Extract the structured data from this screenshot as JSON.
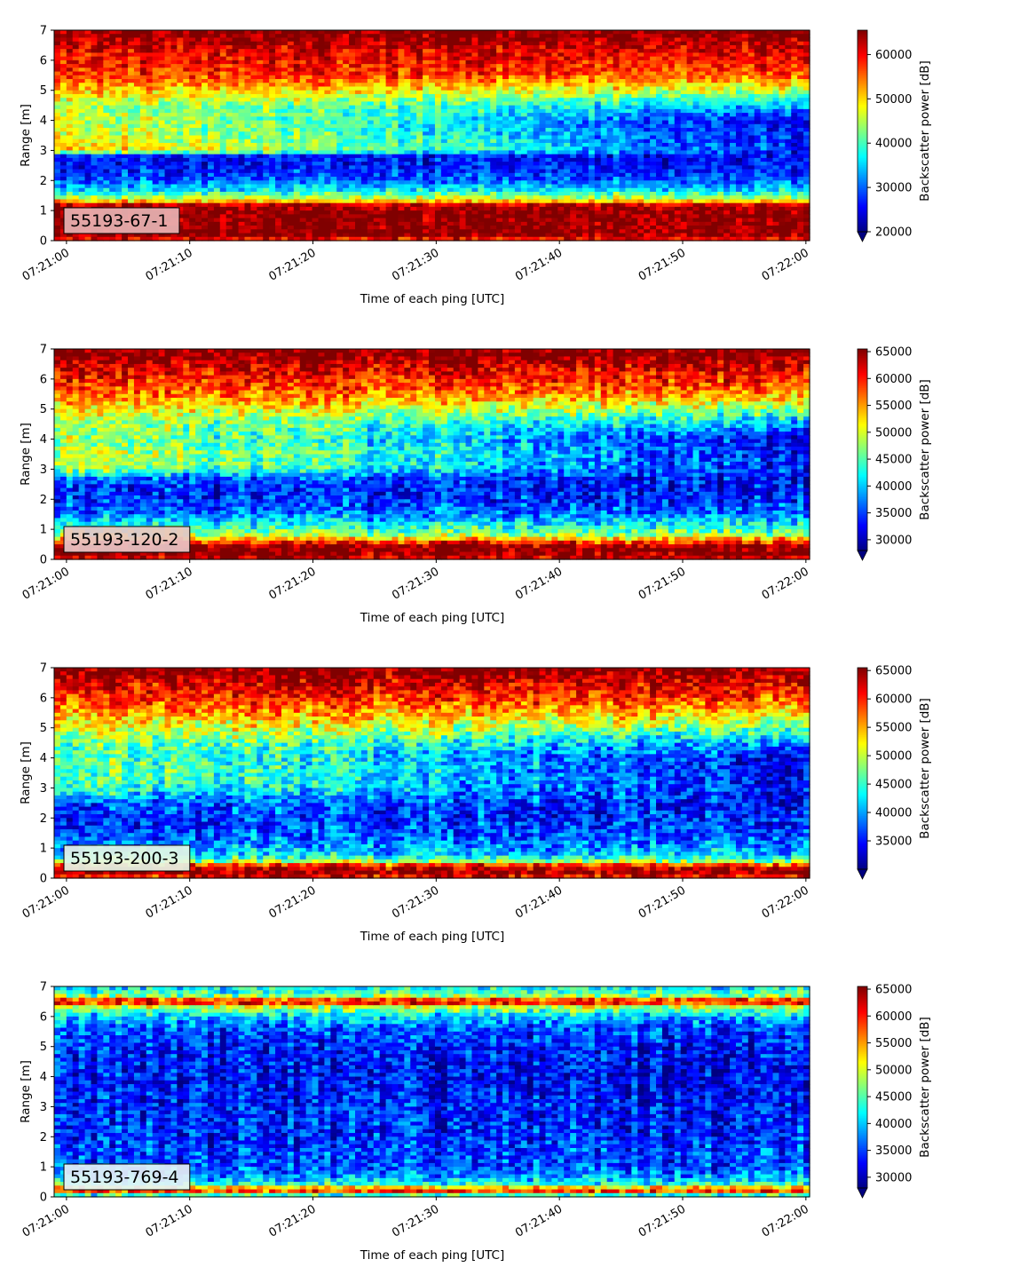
{
  "chart_data": [
    {
      "type": "heatmap",
      "panel_label": "55193-67-1",
      "panel_label_box_color": "#e8b3b3",
      "xlabel": "Time of each ping [UTC]",
      "ylabel": "Range [m]",
      "xticks": [
        "07:21:00",
        "07:21:10",
        "07:21:20",
        "07:21:30",
        "07:21:40",
        "07:21:50",
        "07:22:00"
      ],
      "xlim_seconds_after_07_21_00": [
        -1,
        60.3
      ],
      "yticks": [
        0,
        1,
        2,
        3,
        4,
        5,
        6,
        7
      ],
      "ylim": [
        0,
        7
      ],
      "colormap": "jet",
      "colorbar_label": "Backscatter power [dB]",
      "colorbar_ticks": [
        20000,
        30000,
        40000,
        50000,
        60000
      ],
      "clim": [
        20000,
        65500
      ],
      "colorbar_extend": "min",
      "profile_at_range": {
        "range_m": [
          0.0,
          0.2,
          0.3,
          0.5,
          1.0,
          1.2,
          1.3,
          1.5,
          1.7,
          2.0,
          2.4,
          2.8,
          3.0,
          3.5,
          4.0,
          4.5,
          5.0,
          5.5,
          6.0,
          6.4,
          6.8,
          7.0
        ],
        "start_0721_00": [
          58000,
          65500,
          65500,
          65500,
          65500,
          62000,
          52000,
          42000,
          36000,
          30000,
          27000,
          26000,
          52000,
          48000,
          47000,
          45000,
          52000,
          58000,
          60000,
          62000,
          65500,
          65500
        ],
        "end_0722_00": [
          58000,
          65500,
          65500,
          65500,
          65500,
          62000,
          52000,
          42000,
          36000,
          30000,
          27000,
          26000,
          27000,
          26000,
          25000,
          34000,
          46000,
          56000,
          60000,
          62000,
          65500,
          65500
        ]
      },
      "boundary_depth_m": {
        "start": 2.8,
        "mid_30s": 3.2,
        "end": 4.5
      }
    },
    {
      "type": "heatmap",
      "panel_label": "55193-120-2",
      "panel_label_box_color": "#e8c7c7",
      "xlabel": "Time of each ping [UTC]",
      "ylabel": "Range [m]",
      "xticks": [
        "07:21:00",
        "07:21:10",
        "07:21:20",
        "07:21:30",
        "07:21:40",
        "07:21:50",
        "07:22:00"
      ],
      "xlim_seconds_after_07_21_00": [
        -1,
        60.3
      ],
      "yticks": [
        0,
        1,
        2,
        3,
        4,
        5,
        6,
        7
      ],
      "ylim": [
        0,
        7
      ],
      "colormap": "jet",
      "colorbar_label": "Backscatter power [dB]",
      "colorbar_ticks": [
        30000,
        35000,
        40000,
        45000,
        50000,
        55000,
        60000,
        65000
      ],
      "clim": [
        28000,
        65500
      ],
      "colorbar_extend": "min",
      "profile_at_range": {
        "range_m": [
          0.0,
          0.2,
          0.4,
          0.6,
          0.8,
          1.0,
          1.3,
          1.6,
          2.0,
          2.4,
          2.7,
          3.0,
          3.5,
          4.0,
          4.5,
          5.0,
          5.5,
          6.0,
          6.4,
          6.8,
          7.0
        ],
        "start_0721_00": [
          62000,
          65500,
          65500,
          58000,
          48000,
          44000,
          40000,
          36000,
          34000,
          34000,
          37000,
          48000,
          50000,
          48000,
          48000,
          52000,
          57000,
          60000,
          62000,
          65500,
          65500
        ],
        "end_0722_00": [
          62000,
          65500,
          65500,
          58000,
          48000,
          44000,
          40000,
          36000,
          34000,
          33000,
          33000,
          33000,
          33000,
          32000,
          38000,
          47000,
          55000,
          60000,
          62000,
          65500,
          65500
        ]
      },
      "boundary_depth_m": {
        "start": 2.7,
        "mid_30s": 3.0,
        "end": 4.6
      }
    },
    {
      "type": "heatmap",
      "panel_label": "55193-200-3",
      "panel_label_box_color": "#e6f5e6",
      "xlabel": "Time of each ping [UTC]",
      "ylabel": "Range [m]",
      "xticks": [
        "07:21:00",
        "07:21:10",
        "07:21:20",
        "07:21:30",
        "07:21:40",
        "07:21:50",
        "07:22:00"
      ],
      "xlim_seconds_after_07_21_00": [
        -1,
        60.3
      ],
      "yticks": [
        0,
        1,
        2,
        3,
        4,
        5,
        6,
        7
      ],
      "ylim": [
        0,
        7
      ],
      "colormap": "jet",
      "colorbar_label": "Backscatter power [dB]",
      "colorbar_ticks": [
        35000,
        40000,
        45000,
        50000,
        55000,
        60000,
        65000
      ],
      "clim": [
        30000,
        65500
      ],
      "colorbar_extend": "min",
      "profile_at_range": {
        "range_m": [
          0.0,
          0.2,
          0.4,
          0.6,
          0.8,
          1.0,
          1.3,
          1.6,
          2.0,
          2.4,
          2.6,
          3.0,
          3.5,
          4.0,
          4.5,
          5.0,
          5.5,
          6.0,
          6.4,
          6.8,
          7.0
        ],
        "start_0721_00": [
          60000,
          65500,
          62000,
          46000,
          42000,
          40000,
          38000,
          37000,
          36000,
          37000,
          40000,
          46000,
          48000,
          47000,
          47000,
          52000,
          56000,
          60000,
          62000,
          65500,
          65500
        ],
        "end_0722_00": [
          60000,
          65500,
          62000,
          46000,
          42000,
          40000,
          38000,
          37000,
          36000,
          35000,
          35000,
          35000,
          34000,
          34000,
          40000,
          47000,
          54000,
          59000,
          62000,
          65500,
          65500
        ]
      },
      "boundary_depth_m": {
        "start": 2.6,
        "mid_30s": 3.0,
        "end": 4.8
      }
    },
    {
      "type": "heatmap",
      "panel_label": "55193-769-4",
      "panel_label_box_color": "#e6f3f6",
      "xlabel": "Time of each ping [UTC]",
      "ylabel": "Range [m]",
      "xticks": [
        "07:21:00",
        "07:21:10",
        "07:21:20",
        "07:21:30",
        "07:21:40",
        "07:21:50",
        "07:22:00"
      ],
      "xlim_seconds_after_07_21_00": [
        -1,
        60.3
      ],
      "yticks": [
        0,
        1,
        2,
        3,
        4,
        5,
        6,
        7
      ],
      "ylim": [
        0,
        7
      ],
      "colormap": "jet",
      "colorbar_label": "Backscatter power [dB]",
      "colorbar_ticks": [
        30000,
        35000,
        40000,
        45000,
        50000,
        55000,
        60000,
        65000
      ],
      "clim": [
        28000,
        65500
      ],
      "colorbar_extend": "min",
      "profile_at_range": {
        "range_m": [
          0.0,
          0.15,
          0.3,
          0.45,
          0.7,
          1.0,
          1.5,
          2.0,
          3.0,
          4.0,
          5.0,
          5.6,
          6.0,
          6.3,
          6.5,
          6.7,
          6.9,
          7.0
        ],
        "start_0721_00": [
          32000,
          60000,
          54000,
          42000,
          38000,
          35000,
          35000,
          34000,
          34000,
          33000,
          34000,
          36000,
          40000,
          48000,
          64000,
          46000,
          42000,
          42000
        ],
        "end_0722_00": [
          32000,
          60000,
          54000,
          42000,
          38000,
          35000,
          35000,
          34000,
          33000,
          32000,
          33000,
          35000,
          40000,
          48000,
          64000,
          46000,
          42000,
          42000
        ]
      },
      "boundary_depth_m": {
        "start": 5.5,
        "mid_30s": 5.5,
        "end": 5.5
      }
    }
  ]
}
